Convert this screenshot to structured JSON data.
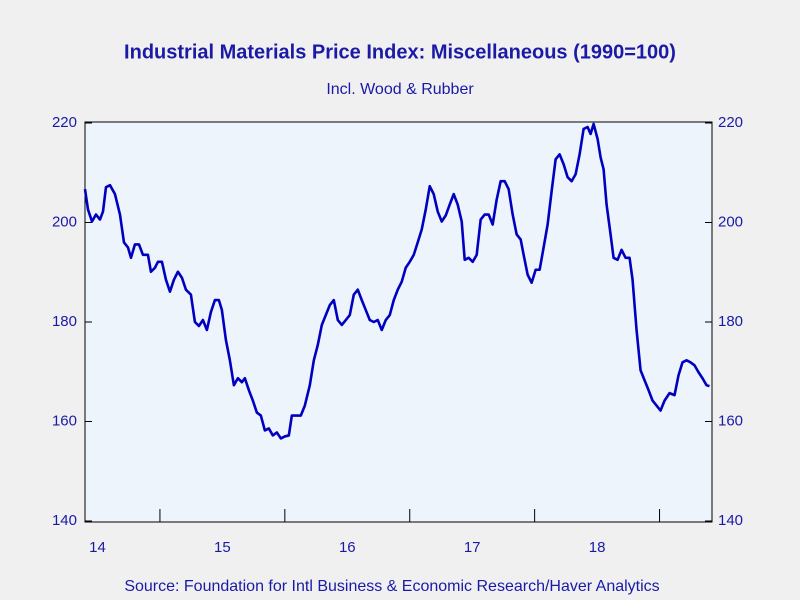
{
  "chart_data": {
    "type": "line",
    "title": "Industrial Materials Price Index: Miscellaneous (1990=100)",
    "subtitle": "Incl. Wood & Rubber",
    "source": "Source:  Foundation for Intl Business & Economic Research/Haver Analytics",
    "color": "#0000c0",
    "xlim": [
      14.4,
      19.42
    ],
    "xticks": [
      {
        "value": 14.5,
        "label": "14"
      },
      {
        "value": 15.5,
        "label": "15"
      },
      {
        "value": 16.5,
        "label": "16"
      },
      {
        "value": 17.5,
        "label": "17"
      },
      {
        "value": 18.5,
        "label": "18"
      }
    ],
    "ylim": [
      140,
      220
    ],
    "yticks": [
      140,
      160,
      180,
      200,
      220
    ],
    "y2lim": [
      140,
      220
    ],
    "y2ticks": [
      140,
      160,
      180,
      200,
      220
    ],
    "x": [
      14.4,
      14.424,
      14.456,
      14.488,
      14.52,
      14.544,
      14.568,
      14.6,
      14.64,
      14.68,
      14.712,
      14.744,
      14.768,
      14.8,
      14.832,
      14.864,
      14.904,
      14.928,
      14.96,
      14.984,
      15.016,
      15.048,
      15.08,
      15.112,
      15.144,
      15.176,
      15.208,
      15.248,
      15.28,
      15.312,
      15.344,
      15.376,
      15.408,
      15.44,
      15.472,
      15.496,
      15.528,
      15.56,
      15.592,
      15.624,
      15.656,
      15.68,
      15.712,
      15.744,
      15.776,
      15.808,
      15.84,
      15.872,
      15.904,
      15.936,
      15.968,
      16.0,
      16.032,
      16.056,
      16.096,
      16.128,
      16.16,
      16.2,
      16.232,
      16.264,
      16.296,
      16.328,
      16.36,
      16.392,
      16.424,
      16.456,
      16.488,
      16.52,
      16.552,
      16.584,
      16.616,
      16.648,
      16.68,
      16.712,
      16.744,
      16.776,
      16.808,
      16.84,
      16.872,
      16.904,
      16.936,
      16.968,
      17.0,
      17.032,
      17.064,
      17.096,
      17.128,
      17.16,
      17.192,
      17.224,
      17.256,
      17.288,
      17.32,
      17.352,
      17.384,
      17.416,
      17.44,
      17.472,
      17.504,
      17.536,
      17.568,
      17.6,
      17.632,
      17.664,
      17.696,
      17.728,
      17.76,
      17.792,
      17.824,
      17.856,
      17.888,
      17.912,
      17.944,
      17.976,
      18.008,
      18.04,
      18.072,
      18.104,
      18.136,
      18.168,
      18.2,
      18.232,
      18.264,
      18.296,
      18.328,
      18.36,
      18.392,
      18.424,
      18.448,
      18.472,
      18.504,
      18.528,
      18.552,
      18.576,
      18.608,
      18.632,
      18.664,
      18.696,
      18.728,
      18.76,
      18.784,
      18.816,
      18.848,
      18.88,
      18.912,
      18.944,
      18.976,
      19.008,
      19.04,
      19.08,
      19.12,
      19.152,
      19.184,
      19.216,
      19.248,
      19.28,
      19.312,
      19.344,
      19.376,
      19.4
    ],
    "values": [
      206.7,
      202.6,
      200.2,
      201.6,
      200.6,
      202.2,
      207.1,
      207.5,
      205.7,
      201.6,
      196,
      195,
      192.9,
      195.6,
      195.6,
      193.5,
      193.5,
      190.1,
      190.9,
      192.1,
      192.1,
      188.5,
      186.1,
      188.5,
      190.1,
      188.9,
      186.5,
      185.5,
      180,
      179.2,
      180.4,
      178.4,
      182,
      184.4,
      184.4,
      182.4,
      176.4,
      172.3,
      167.3,
      168.7,
      167.9,
      168.7,
      166.3,
      164.2,
      161.8,
      161.2,
      158.2,
      158.6,
      157.2,
      157.8,
      156.6,
      157,
      157.2,
      161.2,
      161.2,
      161.2,
      163.2,
      167.3,
      172.3,
      175.4,
      179.4,
      181.4,
      183.4,
      184.4,
      180.4,
      179.4,
      180.4,
      181.4,
      185.5,
      186.5,
      184.4,
      182.4,
      180.4,
      180,
      180.4,
      178.4,
      180.4,
      181.4,
      184.4,
      186.5,
      188.1,
      190.9,
      192.1,
      193.5,
      196,
      198.6,
      202.6,
      207.3,
      205.7,
      202.2,
      200.2,
      201.4,
      203.6,
      205.7,
      203.6,
      200.2,
      192.5,
      192.9,
      192.1,
      193.5,
      200.6,
      201.6,
      201.6,
      199.6,
      204.6,
      208.3,
      208.3,
      206.7,
      201.6,
      197.6,
      196.6,
      193.5,
      189.5,
      187.9,
      190.5,
      190.5,
      195,
      199.6,
      206.3,
      212.7,
      213.7,
      211.7,
      209.1,
      208.3,
      209.7,
      213.7,
      218.8,
      219.2,
      217.8,
      219.8,
      216.8,
      213.1,
      210.7,
      203.6,
      197.6,
      192.9,
      192.5,
      194.5,
      192.9,
      192.9,
      188.5,
      178.4,
      170.3,
      168.3,
      166.3,
      164.2,
      163.2,
      162.2,
      164.2,
      165.7,
      165.3,
      169.3,
      171.9,
      172.3,
      171.9,
      171.3,
      169.9,
      168.7,
      167.3,
      167.1
    ]
  }
}
